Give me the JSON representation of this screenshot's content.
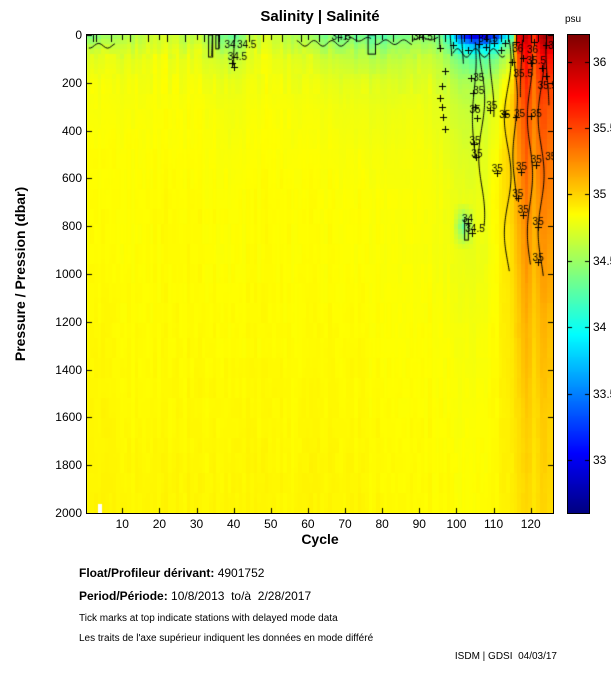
{
  "title": "Salinity | Salinité",
  "footer": {
    "float_label": "Float/Profileur dérivant:",
    "float_value": "4901752",
    "period_label": "Period/Période:",
    "period_value": "10/8/2013  to/à  2/28/2017",
    "note_en": "Tick marks at top indicate stations with delayed mode data",
    "note_fr": "Les traits de l'axe supérieur indiquent les données en mode différé",
    "credit": "ISDM | GDSI  04/03/17"
  },
  "chart_data": {
    "type": "heatmap",
    "title": "Salinity | Salinité",
    "xlabel": "Cycle",
    "ylabel": "Pressure / Pression (dbar)",
    "colorbar_label": "psu",
    "colormap": "jet",
    "grid_on": false,
    "x_range": [
      0.5,
      126
    ],
    "y_range": [
      0,
      2000
    ],
    "y_inverted": true,
    "x_ticks": [
      10,
      20,
      30,
      40,
      50,
      60,
      70,
      80,
      90,
      100,
      110,
      120
    ],
    "y_ticks": [
      0,
      200,
      400,
      600,
      800,
      1000,
      1200,
      1400,
      1600,
      1800,
      2000
    ],
    "colorbar_ticks": [
      36,
      35.5,
      35,
      34.5,
      34,
      33.5,
      33
    ],
    "color_scale_range": [
      32.6,
      36.2
    ],
    "grid": {
      "cycles": [
        1,
        10,
        20,
        30,
        36,
        40,
        44,
        50,
        60,
        70,
        80,
        90,
        95,
        99,
        102,
        105,
        108,
        111,
        113,
        115,
        117,
        119,
        121,
        123,
        125
      ],
      "pressures": [
        0,
        20,
        50,
        100,
        200,
        300,
        500,
        700,
        800,
        900,
        1200,
        1600,
        2000
      ],
      "salinity": [
        [
          34.3,
          34.55,
          34.7,
          34.6,
          34.45,
          34.25,
          34.55,
          34.7,
          34.5,
          34.3,
          34.25,
          34.45,
          34.35,
          33.9,
          33.1,
          32.8,
          32.9,
          33.2,
          33.6,
          34.2,
          35.9,
          36.1,
          35.6,
          36.05,
          36.1
        ],
        [
          34.4,
          34.6,
          34.72,
          34.62,
          34.5,
          34.35,
          34.6,
          34.72,
          34.55,
          34.4,
          34.35,
          34.5,
          34.42,
          34.05,
          33.4,
          33.1,
          33.2,
          33.5,
          33.9,
          34.3,
          35.85,
          36.0,
          35.6,
          36.0,
          36.0
        ],
        [
          34.55,
          34.68,
          34.75,
          34.7,
          34.58,
          34.45,
          34.66,
          34.75,
          34.62,
          34.5,
          34.46,
          34.58,
          34.5,
          34.25,
          33.9,
          33.7,
          33.8,
          34.0,
          34.25,
          34.5,
          35.75,
          35.9,
          35.55,
          35.9,
          35.9
        ],
        [
          34.72,
          34.76,
          34.8,
          34.78,
          34.7,
          34.62,
          34.74,
          34.8,
          34.72,
          34.64,
          34.6,
          34.68,
          34.62,
          34.45,
          34.3,
          34.25,
          34.3,
          34.4,
          34.55,
          34.75,
          35.55,
          35.75,
          35.45,
          35.75,
          35.7
        ],
        [
          34.8,
          34.81,
          34.83,
          34.82,
          34.79,
          34.76,
          34.8,
          34.82,
          34.79,
          34.75,
          34.73,
          34.76,
          34.72,
          34.62,
          34.55,
          34.52,
          34.56,
          34.65,
          34.8,
          35.0,
          35.4,
          35.65,
          35.35,
          35.6,
          35.55
        ],
        [
          34.82,
          34.83,
          34.84,
          34.84,
          34.82,
          34.8,
          34.82,
          34.84,
          34.82,
          34.8,
          34.78,
          34.8,
          34.76,
          34.7,
          34.65,
          34.63,
          34.68,
          34.78,
          34.9,
          35.05,
          35.35,
          35.55,
          35.3,
          35.5,
          35.45
        ],
        [
          34.84,
          34.85,
          34.85,
          34.85,
          34.84,
          34.83,
          34.84,
          34.85,
          34.84,
          34.83,
          34.82,
          34.83,
          34.8,
          34.76,
          34.73,
          34.72,
          34.76,
          34.85,
          34.95,
          35.05,
          35.25,
          35.45,
          35.22,
          35.4,
          35.35
        ],
        [
          34.85,
          34.85,
          34.86,
          34.86,
          34.85,
          34.85,
          34.85,
          34.86,
          34.85,
          34.85,
          34.84,
          34.84,
          34.82,
          34.8,
          34.78,
          34.77,
          34.8,
          34.88,
          34.95,
          35.02,
          35.18,
          35.35,
          35.15,
          35.3,
          35.28
        ],
        [
          34.85,
          34.85,
          34.86,
          34.86,
          34.85,
          34.85,
          34.85,
          34.86,
          34.85,
          34.85,
          34.84,
          34.84,
          34.82,
          34.8,
          34.3,
          34.76,
          34.8,
          34.87,
          34.93,
          35.0,
          35.15,
          35.3,
          35.12,
          35.26,
          35.24
        ],
        [
          34.85,
          34.85,
          34.86,
          34.86,
          34.85,
          34.85,
          34.85,
          34.86,
          34.85,
          34.85,
          34.84,
          34.84,
          34.82,
          34.8,
          34.78,
          34.76,
          34.8,
          34.86,
          34.92,
          34.98,
          35.12,
          35.26,
          35.1,
          35.22,
          35.2
        ],
        [
          34.86,
          34.86,
          34.86,
          34.86,
          34.86,
          34.86,
          34.86,
          34.86,
          34.86,
          34.86,
          34.85,
          34.85,
          34.84,
          34.83,
          34.82,
          34.81,
          34.83,
          34.87,
          34.9,
          34.95,
          35.05,
          35.15,
          35.02,
          35.12,
          35.1
        ],
        [
          34.87,
          34.87,
          34.87,
          34.87,
          34.87,
          34.87,
          34.87,
          34.87,
          34.87,
          34.87,
          34.86,
          34.86,
          34.85,
          34.85,
          34.84,
          34.84,
          34.85,
          34.87,
          34.89,
          34.92,
          34.98,
          35.05,
          34.96,
          35.03,
          35.02
        ],
        [
          34.88,
          34.88,
          34.88,
          34.88,
          34.88,
          34.88,
          34.88,
          34.88,
          34.88,
          34.88,
          34.87,
          34.87,
          34.86,
          34.86,
          34.85,
          34.85,
          34.86,
          34.87,
          34.89,
          34.91,
          34.95,
          35.0,
          34.94,
          34.99,
          34.98
        ]
      ]
    },
    "contour_labels": [
      {
        "text": "34",
        "cycle": 39,
        "pressure": 42
      },
      {
        "text": "34.5",
        "cycle": 43.5,
        "pressure": 42
      },
      {
        "text": "34.5",
        "cycle": 41,
        "pressure": 92
      },
      {
        "text": "34.5",
        "cycle": 69,
        "pressure": 10
      },
      {
        "text": "34.5",
        "cycle": 91,
        "pressure": 8
      },
      {
        "text": "34.5",
        "cycle": 108.5,
        "pressure": 18
      },
      {
        "text": "36",
        "cycle": 116.5,
        "pressure": 60
      },
      {
        "text": "36",
        "cycle": 120.5,
        "pressure": 62
      },
      {
        "text": "35.5",
        "cycle": 121.5,
        "pressure": 108
      },
      {
        "text": "35.5",
        "cycle": 118,
        "pressure": 165
      },
      {
        "text": "35.5",
        "cycle": 124.5,
        "pressure": 215
      },
      {
        "text": "35",
        "cycle": 106,
        "pressure": 180
      },
      {
        "text": "35",
        "cycle": 106,
        "pressure": 235
      },
      {
        "text": "35",
        "cycle": 109.5,
        "pressure": 300
      },
      {
        "text": "35",
        "cycle": 105,
        "pressure": 315
      },
      {
        "text": "35",
        "cycle": 113,
        "pressure": 335
      },
      {
        "text": "35",
        "cycle": 117,
        "pressure": 330
      },
      {
        "text": "35",
        "cycle": 121.5,
        "pressure": 330
      },
      {
        "text": "35",
        "cycle": 105,
        "pressure": 445
      },
      {
        "text": "35",
        "cycle": 105.5,
        "pressure": 500
      },
      {
        "text": "35",
        "cycle": 111,
        "pressure": 560
      },
      {
        "text": "35",
        "cycle": 117.5,
        "pressure": 555
      },
      {
        "text": "35",
        "cycle": 121.5,
        "pressure": 525
      },
      {
        "text": "35",
        "cycle": 116.5,
        "pressure": 665
      },
      {
        "text": "35",
        "cycle": 118,
        "pressure": 735
      },
      {
        "text": "34",
        "cycle": 103,
        "pressure": 770
      },
      {
        "text": "34.5",
        "cycle": 105,
        "pressure": 812
      },
      {
        "text": "35",
        "cycle": 122,
        "pressure": 785
      },
      {
        "text": "35",
        "cycle": 122,
        "pressure": 935
      },
      {
        "text": "36",
        "cycle": 126.2,
        "pressure": 45
      },
      {
        "text": "35.5",
        "cycle": 126.5,
        "pressure": 510
      }
    ],
    "station_markers": [
      [
        95.5,
        55
      ],
      [
        99,
        40
      ],
      [
        103,
        62
      ],
      [
        106,
        38
      ],
      [
        108,
        52
      ],
      [
        110,
        32
      ],
      [
        112,
        62
      ],
      [
        97,
        150
      ],
      [
        96,
        212
      ],
      [
        95.5,
        262
      ],
      [
        96,
        302
      ],
      [
        96.5,
        342
      ],
      [
        97,
        392
      ],
      [
        104,
        182
      ],
      [
        104.5,
        242
      ],
      [
        105,
        302
      ],
      [
        105.5,
        347
      ],
      [
        104.6,
        458
      ],
      [
        105.2,
        512
      ],
      [
        111,
        578
      ],
      [
        117.3,
        572
      ],
      [
        121.3,
        542
      ],
      [
        116.5,
        682
      ],
      [
        118,
        752
      ],
      [
        103,
        788
      ],
      [
        104.3,
        828
      ],
      [
        122,
        802
      ],
      [
        122,
        948
      ],
      [
        115,
        112
      ],
      [
        118,
        96
      ],
      [
        120,
        116
      ],
      [
        123,
        136
      ],
      [
        124,
        172
      ],
      [
        109,
        312
      ],
      [
        113,
        332
      ],
      [
        120,
        338
      ],
      [
        116,
        342
      ],
      [
        40,
        135
      ],
      [
        39.5,
        118
      ],
      [
        113,
        35
      ],
      [
        116,
        30
      ],
      [
        121,
        28
      ],
      [
        124,
        40
      ]
    ],
    "contour_lines": [
      {
        "c": 34.2,
        "p0": 0,
        "p1": 95,
        "amp": 0.15
      },
      {
        "c": 36.0,
        "p0": 0,
        "p1": 58,
        "amp": 0.15
      },
      {
        "c": 40.5,
        "p0": 0,
        "p1": 130,
        "amp": 0.5
      },
      {
        "c": 95.5,
        "p0": 0,
        "p1": 60,
        "amp": 0.3
      },
      {
        "c": 98.5,
        "p0": 0,
        "p1": 95,
        "amp": 0.4
      },
      {
        "c": 101.5,
        "p0": 0,
        "p1": 125,
        "amp": 0.4
      },
      {
        "c": 104.8,
        "p0": 30,
        "p1": 520,
        "amp": 0.5
      },
      {
        "c": 106.8,
        "p0": 40,
        "p1": 800,
        "amp": 0.8
      },
      {
        "c": 109.5,
        "p0": 15,
        "p1": 350,
        "amp": 0.6
      },
      {
        "c": 113.8,
        "p0": 20,
        "p1": 990,
        "amp": 0.9
      },
      {
        "c": 115.8,
        "p0": 30,
        "p1": 700,
        "amp": 0.6
      },
      {
        "c": 117.5,
        "p0": 20,
        "p1": 260,
        "amp": 0.3
      },
      {
        "c": 119.8,
        "p0": 80,
        "p1": 960,
        "amp": 0.7
      },
      {
        "c": 122.8,
        "p0": 120,
        "p1": 1010,
        "amp": 0.8
      },
      {
        "c": 124.5,
        "p0": 30,
        "p1": 300,
        "amp": 0.4
      },
      {
        "type": "h",
        "c0": 57,
        "c1": 71,
        "p": 35,
        "amp": 12
      },
      {
        "type": "h",
        "c0": 71,
        "c1": 77,
        "p": 18,
        "amp": 8
      },
      {
        "type": "h",
        "c0": 78,
        "c1": 88,
        "p": 30,
        "amp": 10
      },
      {
        "type": "h",
        "c0": 88,
        "c1": 95,
        "p": 15,
        "amp": 6
      },
      {
        "type": "h",
        "c0": 1,
        "c1": 8,
        "p": 45,
        "amp": 10
      },
      {
        "type": "h",
        "c0": 99,
        "c1": 113,
        "p": 75,
        "amp": 18
      },
      {
        "type": "rect",
        "c": 33.8,
        "p0": 0,
        "p1": 92,
        "w": 1.1
      },
      {
        "type": "rect",
        "c": 35.6,
        "p0": 0,
        "p1": 58,
        "w": 0.8
      },
      {
        "type": "rect",
        "c": 77.2,
        "p0": 0,
        "p1": 80,
        "w": 2.0
      },
      {
        "type": "rect",
        "c": 102.7,
        "p0": 770,
        "p1": 858,
        "w": 1.0
      }
    ],
    "delayed_mode_tick_cycles": [
      2,
      3,
      7,
      12,
      17,
      22,
      27,
      32,
      36,
      40,
      44,
      48,
      53,
      58,
      63,
      68,
      73,
      78,
      83,
      88,
      91,
      94,
      97,
      100,
      102,
      104,
      106,
      108,
      110,
      112,
      114,
      116,
      118,
      120,
      122,
      124
    ],
    "missing_cells": [
      {
        "cycle": 4,
        "p0": 1965,
        "p1": 2000
      }
    ]
  }
}
